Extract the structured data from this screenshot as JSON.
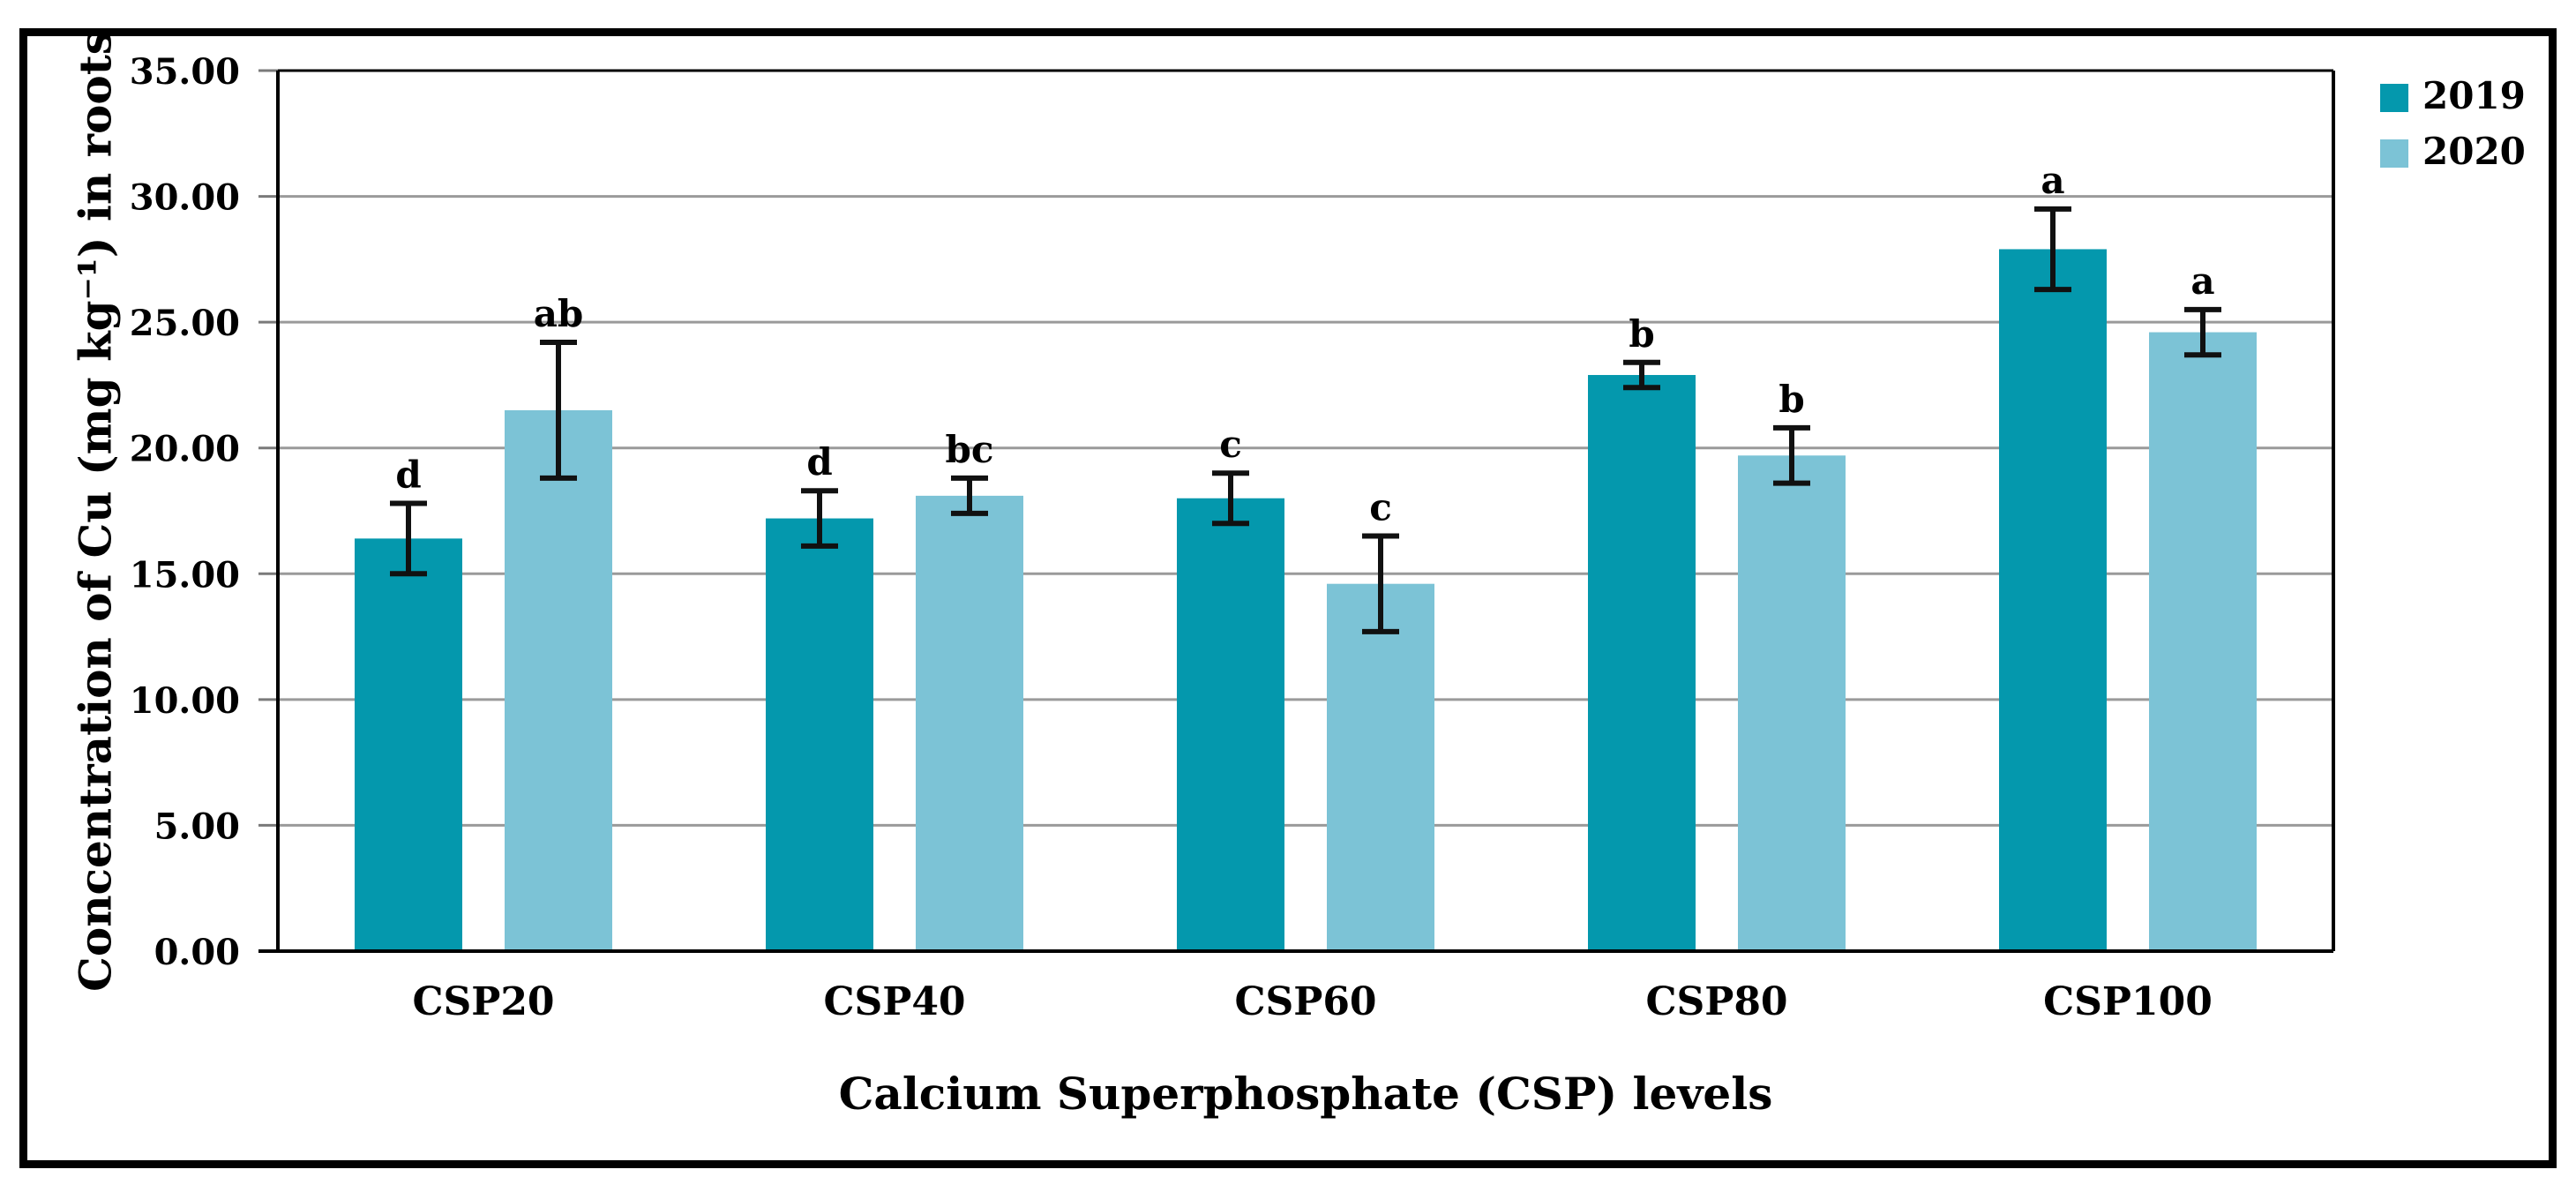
{
  "figure": {
    "type_label": "grouped-bar-figure"
  },
  "chart_data": {
    "type": "bar",
    "title": "",
    "xlabel": "Calcium Superphosphate (CSP) levels",
    "ylabel": "Concentration of Cu (mg kg⁻¹) in roots",
    "categories": [
      "CSP20",
      "CSP40",
      "CSP60",
      "CSP80",
      "CSP100"
    ],
    "series": [
      {
        "name": "2019",
        "color": "#0498ad",
        "values": [
          16.4,
          17.2,
          18.0,
          22.9,
          27.9
        ],
        "errors": [
          1.4,
          1.1,
          1.0,
          0.5,
          1.6
        ],
        "sig_letters": [
          "d",
          "d",
          "c",
          "b",
          "a"
        ]
      },
      {
        "name": "2020",
        "color": "#7cc3d6",
        "values": [
          21.5,
          18.1,
          14.6,
          19.7,
          24.6
        ],
        "errors": [
          2.7,
          0.7,
          1.9,
          1.1,
          0.9
        ],
        "sig_letters": [
          "ab",
          "bc",
          "c",
          "b",
          "a"
        ]
      }
    ],
    "ylim": [
      0,
      35
    ],
    "ytick_step": 5,
    "ytick_labels": [
      "0.00",
      "5.00",
      "10.00",
      "15.00",
      "20.00",
      "25.00",
      "30.00",
      "35.00"
    ],
    "grid": true,
    "legend_position": "top-right",
    "gridline_color": "#9a9a9a",
    "error_bar_color": "#111111"
  }
}
